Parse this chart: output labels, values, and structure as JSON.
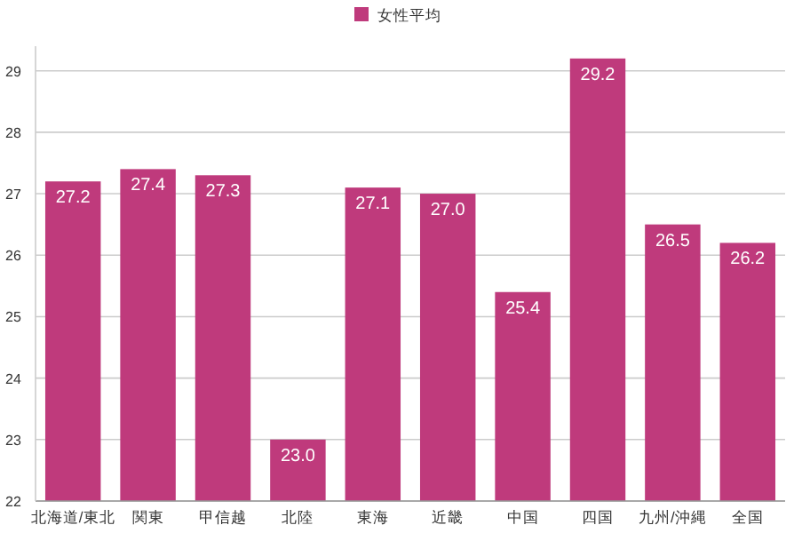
{
  "chart_data": {
    "type": "bar",
    "categories": [
      "北海道/東北",
      "関東",
      "甲信越",
      "北陸",
      "東海",
      "近畿",
      "中国",
      "四国",
      "九州/沖縄",
      "全国"
    ],
    "series": [
      {
        "name": "女性平均",
        "color": "#bf3a7c",
        "values": [
          27.2,
          27.4,
          27.3,
          23.0,
          27.1,
          27.0,
          25.4,
          29.2,
          26.5,
          26.2
        ],
        "value_labels": [
          "27.2",
          "27.4",
          "27.3",
          "23.0",
          "27.1",
          "27.0",
          "25.4",
          "29.2",
          "26.5",
          "26.2"
        ]
      }
    ],
    "ylim": [
      22,
      29.4
    ],
    "yticks": [
      22,
      23,
      24,
      25,
      26,
      27,
      28,
      29
    ],
    "grid": "y",
    "legend": "top"
  }
}
